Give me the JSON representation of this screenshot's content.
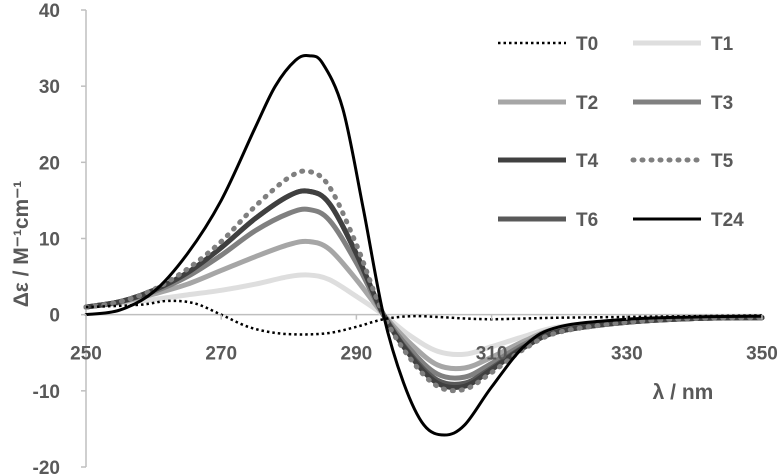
{
  "chart_data": {
    "type": "line",
    "xlabel": "λ / nm",
    "ylabel": "Δε / M⁻¹cm⁻¹",
    "xlim": [
      250,
      350
    ],
    "ylim": [
      -20,
      40
    ],
    "xticks": [
      "250",
      "270",
      "290",
      "310",
      "330",
      "350"
    ],
    "yticks": [
      "40",
      "30",
      "20",
      "10",
      "0",
      "-10",
      "-20"
    ],
    "grid": false,
    "legend_position": "top-right",
    "series": [
      {
        "name": "T0",
        "color": "#000000",
        "style": "dotted",
        "width": 2.5,
        "x": [
          250,
          258,
          262,
          266,
          270,
          274,
          278,
          282,
          286,
          290,
          294,
          298,
          302,
          306,
          310,
          315,
          320,
          330,
          340,
          350
        ],
        "y": [
          1.0,
          1.3,
          1.8,
          1.5,
          0.0,
          -1.6,
          -2.4,
          -2.6,
          -2.4,
          -1.6,
          -0.6,
          -0.2,
          -0.3,
          -0.5,
          -0.6,
          -0.5,
          -0.4,
          -0.3,
          -0.2,
          -0.1
        ]
      },
      {
        "name": "T1",
        "color": "#dedede",
        "style": "solid",
        "width": 5,
        "x": [
          250,
          255,
          260,
          265,
          270,
          275,
          280,
          283,
          286,
          290,
          294,
          298,
          302,
          306,
          310,
          315,
          320,
          330,
          340,
          350
        ],
        "y": [
          1.0,
          1.5,
          2.0,
          2.6,
          3.2,
          4.0,
          5.0,
          5.2,
          4.6,
          2.4,
          0.0,
          -2.8,
          -4.8,
          -5.2,
          -4.2,
          -2.8,
          -1.6,
          -0.8,
          -0.5,
          -0.4
        ]
      },
      {
        "name": "T2",
        "color": "#a6a6a6",
        "style": "solid",
        "width": 5,
        "x": [
          250,
          255,
          260,
          265,
          270,
          275,
          280,
          283,
          286,
          290,
          294,
          298,
          302,
          306,
          310,
          315,
          320,
          330,
          340,
          350
        ],
        "y": [
          1.0,
          1.6,
          2.7,
          4.0,
          5.8,
          7.6,
          9.2,
          9.6,
          8.6,
          4.6,
          0.0,
          -3.8,
          -6.6,
          -7.0,
          -5.6,
          -3.4,
          -1.8,
          -0.9,
          -0.5,
          -0.4
        ]
      },
      {
        "name": "T3",
        "color": "#808080",
        "style": "solid",
        "width": 5,
        "x": [
          250,
          255,
          260,
          265,
          270,
          275,
          280,
          283,
          286,
          290,
          294,
          298,
          302,
          306,
          310,
          315,
          320,
          330,
          340,
          350
        ],
        "y": [
          1.0,
          1.7,
          3.0,
          5.0,
          7.8,
          11.0,
          13.3,
          13.8,
          12.4,
          6.8,
          0.0,
          -4.6,
          -7.8,
          -8.2,
          -6.4,
          -3.8,
          -2.0,
          -1.0,
          -0.5,
          -0.4
        ]
      },
      {
        "name": "T4",
        "color": "#404040",
        "style": "solid",
        "width": 5,
        "x": [
          250,
          255,
          260,
          265,
          270,
          275,
          280,
          283,
          286,
          290,
          294,
          298,
          302,
          306,
          310,
          315,
          320,
          330,
          340,
          350
        ],
        "y": [
          1.0,
          1.7,
          3.2,
          5.5,
          8.8,
          12.6,
          15.6,
          16.2,
          14.6,
          8.0,
          0.0,
          -5.4,
          -9.0,
          -9.4,
          -7.2,
          -4.2,
          -2.2,
          -1.0,
          -0.5,
          -0.4
        ]
      },
      {
        "name": "T5",
        "color": "#7f7f7f",
        "style": "dotted",
        "width": 5,
        "x": [
          250,
          255,
          260,
          265,
          270,
          275,
          280,
          283,
          286,
          290,
          294,
          298,
          302,
          306,
          310,
          315,
          320,
          330,
          340,
          350
        ],
        "y": [
          1.0,
          1.7,
          3.3,
          6.0,
          9.6,
          14.2,
          18.0,
          18.8,
          16.8,
          9.2,
          0.0,
          -5.8,
          -9.4,
          -9.8,
          -7.6,
          -4.4,
          -2.3,
          -1.0,
          -0.5,
          -0.4
        ]
      },
      {
        "name": "T6",
        "color": "#595959",
        "style": "solid",
        "width": 5,
        "x": [
          250,
          255,
          260,
          265,
          270,
          275,
          280,
          283,
          286,
          290,
          294,
          298,
          302,
          306,
          310,
          315,
          320,
          330,
          340,
          350
        ],
        "y": [
          1.0,
          1.7,
          3.2,
          5.5,
          8.8,
          12.6,
          15.6,
          16.2,
          14.6,
          8.0,
          0.0,
          -5.2,
          -8.6,
          -9.0,
          -7.0,
          -4.1,
          -2.2,
          -1.0,
          -0.5,
          -0.4
        ]
      },
      {
        "name": "T24",
        "color": "#000000",
        "style": "solid",
        "width": 3,
        "x": [
          250,
          255,
          260,
          265,
          270,
          275,
          278,
          281,
          283,
          285,
          288,
          291,
          294,
          297,
          300,
          303,
          306,
          310,
          315,
          320,
          330,
          340,
          350
        ],
        "y": [
          0.0,
          0.6,
          3.0,
          8.0,
          15.0,
          24.5,
          30.0,
          33.4,
          34.0,
          33.0,
          27.0,
          14.0,
          0.0,
          -9.0,
          -14.5,
          -15.8,
          -14.5,
          -9.5,
          -4.0,
          -1.6,
          -0.6,
          -0.3,
          -0.2
        ]
      }
    ]
  }
}
